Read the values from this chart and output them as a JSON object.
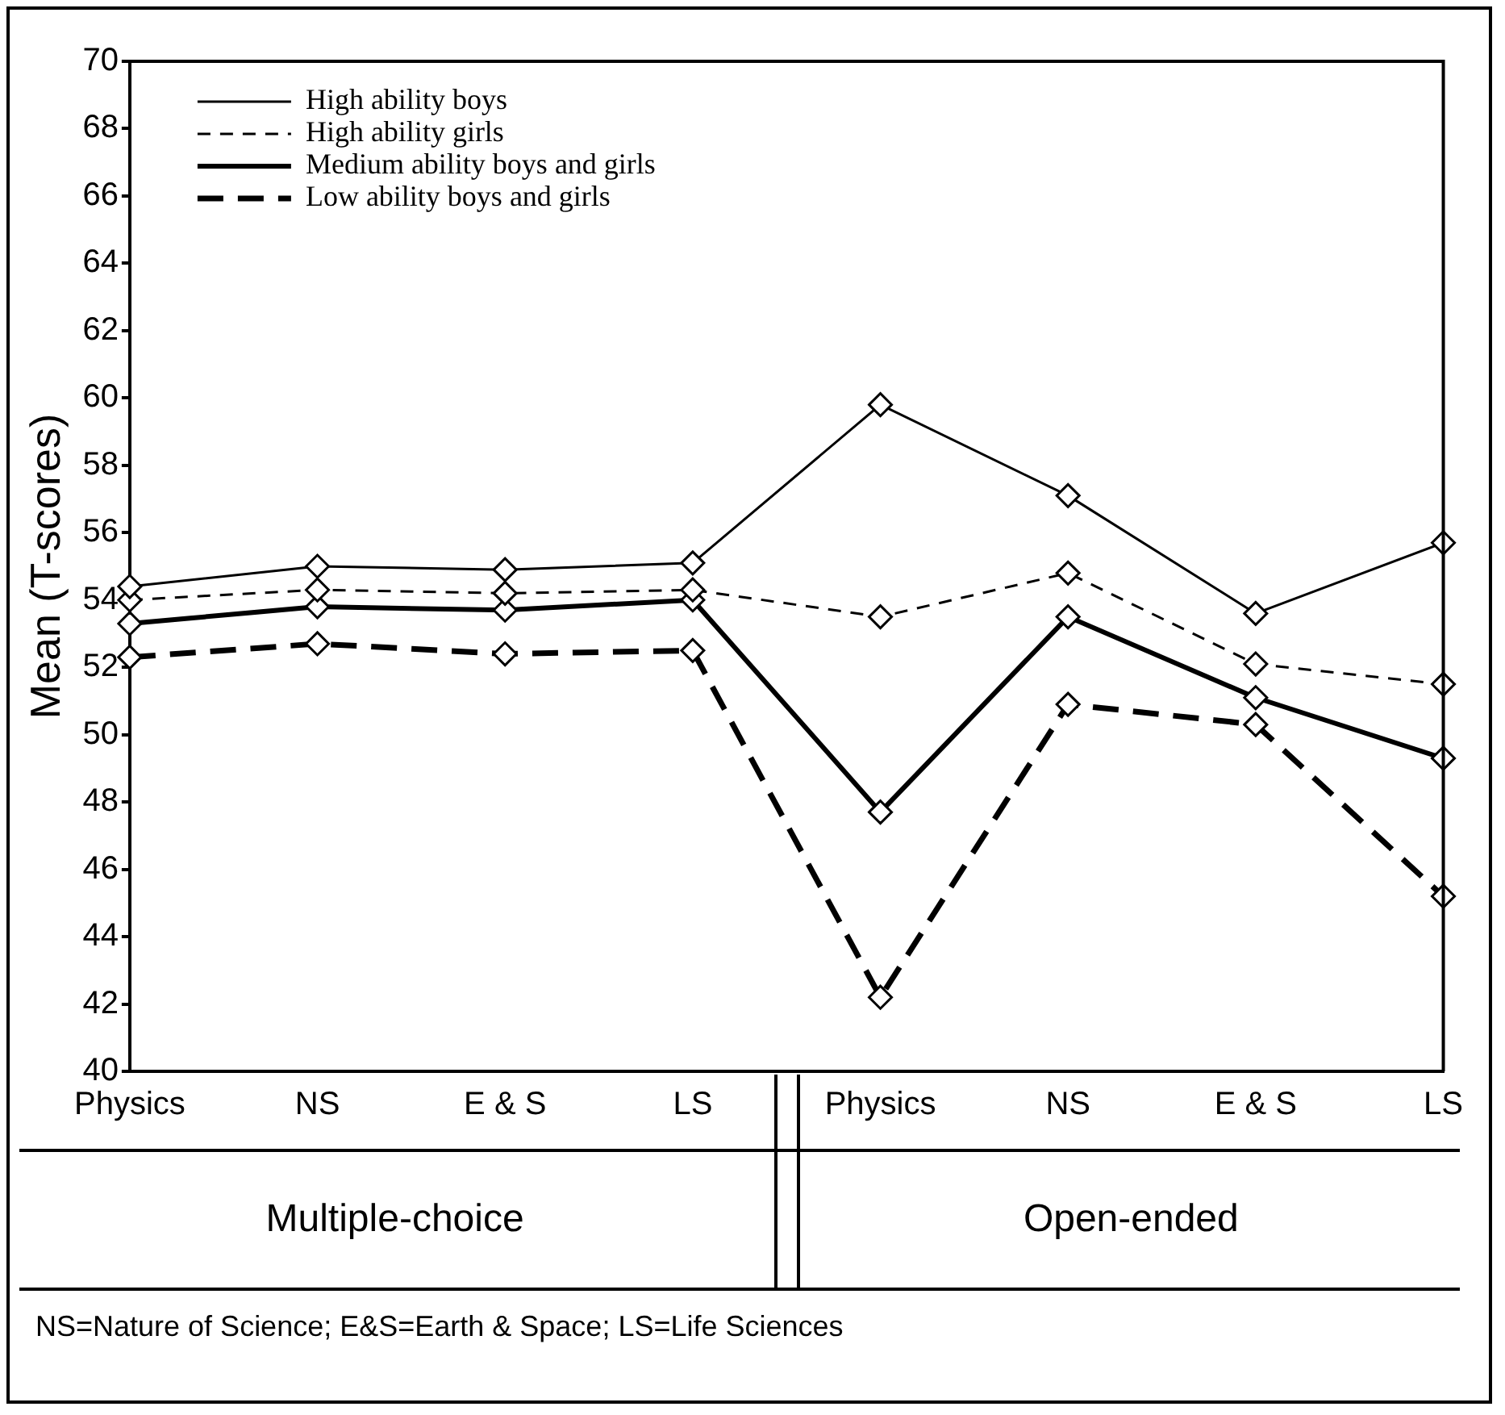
{
  "chart_data": {
    "type": "line",
    "ylabel": "Mean (T-scores)",
    "categories": [
      "Physics",
      "NS",
      "E & S",
      "LS",
      "Physics",
      "NS",
      "E & S",
      "LS"
    ],
    "series": [
      {
        "name": "High ability boys",
        "color": "#000000",
        "line_style": "solid",
        "values": [
          54.4,
          55.0,
          54.9,
          55.1,
          59.8,
          57.1,
          53.6,
          55.7
        ]
      },
      {
        "name": "High ability girls",
        "color": "#000000",
        "line_style": "dashed",
        "values": [
          54.0,
          54.3,
          54.2,
          54.3,
          53.5,
          54.8,
          52.1,
          51.5
        ]
      },
      {
        "name": "Medium ability boys and girls",
        "color": "#000000",
        "line_style": "solid",
        "values": [
          53.3,
          53.8,
          53.7,
          54.0,
          47.7,
          53.5,
          51.1,
          49.3
        ]
      },
      {
        "name": "Low ability boys and girls",
        "color": "#000000",
        "line_style": "dashed",
        "values": [
          52.3,
          52.7,
          52.4,
          52.5,
          42.2,
          50.9,
          50.3,
          45.2
        ]
      }
    ],
    "ylim": [
      40,
      70
    ],
    "yticks": [
      40,
      42,
      44,
      46,
      48,
      50,
      52,
      54,
      56,
      58,
      60,
      62,
      64,
      66,
      68,
      70
    ],
    "marker": "diamond",
    "grid": false,
    "legend": "top left",
    "annotations": [
      "Multiple-choice",
      "Open-ended",
      "NS=Nature of Science; E&S=Earth & Space; LS=Life Sciences"
    ]
  }
}
